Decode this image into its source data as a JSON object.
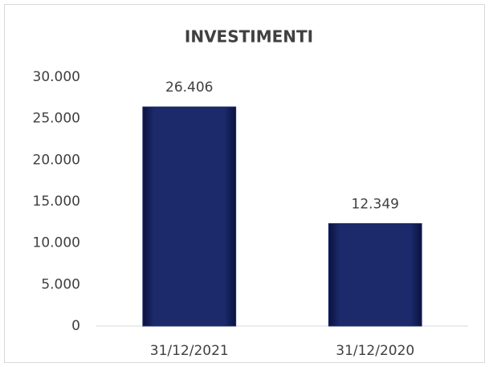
{
  "chart_data": {
    "type": "bar",
    "title": "INVESTIMENTI",
    "categories": [
      "31/12/2021",
      "31/12/2020"
    ],
    "values": [
      26406,
      12349
    ],
    "value_labels": [
      "26.406",
      "12.349"
    ],
    "color": "#1c2a6b",
    "ylim": [
      0,
      30000
    ],
    "yticks": [
      0,
      {
        "value": 5000,
        "label": "5.000"
      },
      {
        "value": 10000,
        "label": "10.000"
      },
      {
        "value": 15000,
        "label": "15.000"
      },
      {
        "value": 20000,
        "label": "20.000"
      },
      {
        "value": 25000,
        "label": "25.000"
      },
      {
        "value": 30000,
        "label": "30.000"
      }
    ],
    "grid": false
  }
}
